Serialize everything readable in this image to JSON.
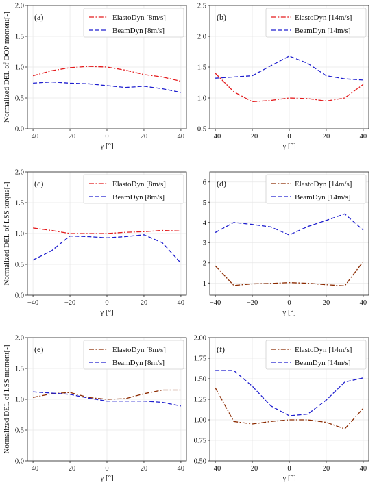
{
  "figure": {
    "panels": [
      {
        "label": "(a)",
        "col": 0,
        "row": 0,
        "ylabel": "Normalized DEL of OOP moment[-]",
        "xlabel": "γ [°]"
      },
      {
        "label": "(b)",
        "col": 1,
        "row": 0,
        "ylabel": "",
        "xlabel": "γ [°]"
      },
      {
        "label": "(c)",
        "col": 0,
        "row": 1,
        "ylabel": "Normalized DEL of LSS torque[-]",
        "xlabel": "γ [°]"
      },
      {
        "label": "(d)",
        "col": 1,
        "row": 1,
        "ylabel": "",
        "xlabel": "γ [°]"
      },
      {
        "label": "(e)",
        "col": 0,
        "row": 2,
        "ylabel": "Normalized DEL of LSS moment[-]",
        "xlabel": "γ [°]"
      },
      {
        "label": "(f)",
        "col": 1,
        "row": 2,
        "ylabel": "",
        "xlabel": "γ [°]"
      }
    ]
  },
  "chart_data": [
    {
      "type": "line",
      "panel": "(a)",
      "xlabel": "γ [°]",
      "ylabel": "Normalized DEL of OOP moment[-]",
      "x": [
        -40,
        -30,
        -20,
        -10,
        0,
        10,
        20,
        30,
        40
      ],
      "xlim": [
        -43,
        43
      ],
      "ylim": [
        0.0,
        2.0
      ],
      "xticks": [
        "−40",
        "−20",
        "0",
        "20",
        "40"
      ],
      "xtick_values": [
        -40,
        -20,
        0,
        20,
        40
      ],
      "yticks": [
        "0.0",
        "0.5",
        "1.0",
        "1.5",
        "2.0"
      ],
      "ytick_values": [
        0.0,
        0.5,
        1.0,
        1.5,
        2.0
      ],
      "grid": true,
      "legend_position": "top-right",
      "series": [
        {
          "name": "ElastoDyn [8m/s]",
          "color": "#e41a1c",
          "dash": "dashdot",
          "values": [
            0.86,
            0.94,
            0.99,
            1.01,
            1.0,
            0.95,
            0.88,
            0.84,
            0.77
          ]
        },
        {
          "name": "BeamDyn [8m/s]",
          "color": "#1f1fcf",
          "dash": "dashed",
          "values": [
            0.74,
            0.76,
            0.74,
            0.73,
            0.7,
            0.67,
            0.69,
            0.65,
            0.59
          ]
        }
      ]
    },
    {
      "type": "line",
      "panel": "(b)",
      "xlabel": "γ [°]",
      "ylabel": "",
      "x": [
        -40,
        -30,
        -20,
        -10,
        0,
        10,
        20,
        30,
        40
      ],
      "xlim": [
        -43,
        43
      ],
      "ylim": [
        0.5,
        2.5
      ],
      "xticks": [
        "−40",
        "−20",
        "0",
        "20",
        "40"
      ],
      "xtick_values": [
        -40,
        -20,
        0,
        20,
        40
      ],
      "yticks": [
        "0.5",
        "1.0",
        "1.5",
        "2.0",
        "2.5"
      ],
      "ytick_values": [
        0.5,
        1.0,
        1.5,
        2.0,
        2.5
      ],
      "grid": true,
      "legend_position": "top-right",
      "series": [
        {
          "name": "ElastoDyn [14m/s]",
          "color": "#e41a1c",
          "dash": "dashdot",
          "values": [
            1.4,
            1.1,
            0.94,
            0.96,
            1.0,
            0.99,
            0.95,
            1.0,
            1.22
          ]
        },
        {
          "name": "BeamDyn [14m/s]",
          "color": "#1f1fcf",
          "dash": "dashed",
          "values": [
            1.32,
            1.34,
            1.36,
            1.52,
            1.68,
            1.56,
            1.36,
            1.31,
            1.29
          ]
        }
      ]
    },
    {
      "type": "line",
      "panel": "(c)",
      "xlabel": "γ [°]",
      "ylabel": "Normalized DEL of LSS torque[-]",
      "x": [
        -40,
        -30,
        -20,
        -10,
        0,
        10,
        20,
        30,
        40
      ],
      "xlim": [
        -43,
        43
      ],
      "ylim": [
        0.0,
        2.0
      ],
      "xticks": [
        "−40",
        "−20",
        "0",
        "20",
        "40"
      ],
      "xtick_values": [
        -40,
        -20,
        0,
        20,
        40
      ],
      "yticks": [
        "0.0",
        "0.5",
        "1.0",
        "1.5",
        "2.0"
      ],
      "ytick_values": [
        0.0,
        0.5,
        1.0,
        1.5,
        2.0
      ],
      "grid": true,
      "legend_position": "top-right",
      "series": [
        {
          "name": "ElastoDyn [8m/s]",
          "color": "#e41a1c",
          "dash": "dashdot",
          "values": [
            1.09,
            1.05,
            1.0,
            1.0,
            1.0,
            1.02,
            1.03,
            1.05,
            1.04
          ]
        },
        {
          "name": "BeamDyn [8m/s]",
          "color": "#1f1fcf",
          "dash": "dashed",
          "values": [
            0.57,
            0.72,
            0.96,
            0.95,
            0.93,
            0.95,
            0.98,
            0.85,
            0.52
          ]
        }
      ]
    },
    {
      "type": "line",
      "panel": "(d)",
      "xlabel": "γ [°]",
      "ylabel": "",
      "x": [
        -40,
        -30,
        -20,
        -10,
        0,
        10,
        20,
        30,
        40
      ],
      "xlim": [
        -43,
        43
      ],
      "ylim": [
        0.4,
        6.5
      ],
      "xticks": [
        "−40",
        "−20",
        "0",
        "20",
        "40"
      ],
      "xtick_values": [
        -40,
        -20,
        0,
        20,
        40
      ],
      "yticks": [
        "1",
        "2",
        "3",
        "4",
        "5",
        "6"
      ],
      "ytick_values": [
        1,
        2,
        3,
        4,
        5,
        6
      ],
      "grid": true,
      "legend_position": "top-right",
      "series": [
        {
          "name": "ElastoDyn [14m/s]",
          "color": "#8b2a00",
          "dash": "dashdot",
          "values": [
            1.85,
            0.88,
            0.96,
            0.98,
            1.02,
            0.99,
            0.92,
            0.86,
            2.06
          ]
        },
        {
          "name": "BeamDyn [14m/s]",
          "color": "#1f1fcf",
          "dash": "dashed",
          "values": [
            3.5,
            4.0,
            3.9,
            3.78,
            3.38,
            3.8,
            4.1,
            4.42,
            3.62
          ]
        }
      ]
    },
    {
      "type": "line",
      "panel": "(e)",
      "xlabel": "γ [°]",
      "ylabel": "Normalized DEL of LSS moment[-]",
      "x": [
        -40,
        -30,
        -20,
        -10,
        0,
        10,
        20,
        30,
        40
      ],
      "xlim": [
        -43,
        43
      ],
      "ylim": [
        0.0,
        2.0
      ],
      "xticks": [
        "−40",
        "−20",
        "0",
        "20",
        "40"
      ],
      "xtick_values": [
        -40,
        -20,
        0,
        20,
        40
      ],
      "yticks": [
        "0.0",
        "0.5",
        "1.0",
        "1.5",
        "2.0"
      ],
      "ytick_values": [
        0.0,
        0.5,
        1.0,
        1.5,
        2.0
      ],
      "grid": true,
      "legend_position": "top-right",
      "series": [
        {
          "name": "ElastoDyn [8m/s]",
          "color": "#8b2a00",
          "dash": "dashdot",
          "values": [
            1.03,
            1.09,
            1.11,
            1.03,
            1.0,
            1.01,
            1.09,
            1.15,
            1.15
          ]
        },
        {
          "name": "BeamDyn [8m/s]",
          "color": "#1f1fcf",
          "dash": "dashed",
          "values": [
            1.12,
            1.1,
            1.08,
            1.02,
            0.97,
            0.97,
            0.97,
            0.95,
            0.89
          ]
        }
      ]
    },
    {
      "type": "line",
      "panel": "(f)",
      "xlabel": "γ [°]",
      "ylabel": "",
      "x": [
        -40,
        -30,
        -20,
        -10,
        0,
        10,
        20,
        30,
        40
      ],
      "xlim": [
        -43,
        43
      ],
      "ylim": [
        0.5,
        2.0
      ],
      "xticks": [
        "−40",
        "−20",
        "0",
        "20",
        "40"
      ],
      "xtick_values": [
        -40,
        -20,
        0,
        20,
        40
      ],
      "yticks": [
        "0.50",
        "0.75",
        "1.00",
        "1.25",
        "1.50",
        "1.75",
        "2.00"
      ],
      "ytick_values": [
        0.5,
        0.75,
        1.0,
        1.25,
        1.5,
        1.75,
        2.0
      ],
      "grid": true,
      "legend_position": "top-right",
      "series": [
        {
          "name": "ElastoDyn [14m/s]",
          "color": "#8b2a00",
          "dash": "dashdot",
          "values": [
            1.39,
            0.98,
            0.95,
            0.98,
            1.0,
            1.0,
            0.97,
            0.89,
            1.14
          ]
        },
        {
          "name": "BeamDyn [14m/s]",
          "color": "#1f1fcf",
          "dash": "dashed",
          "values": [
            1.6,
            1.6,
            1.41,
            1.17,
            1.05,
            1.07,
            1.24,
            1.46,
            1.51
          ]
        }
      ]
    }
  ]
}
